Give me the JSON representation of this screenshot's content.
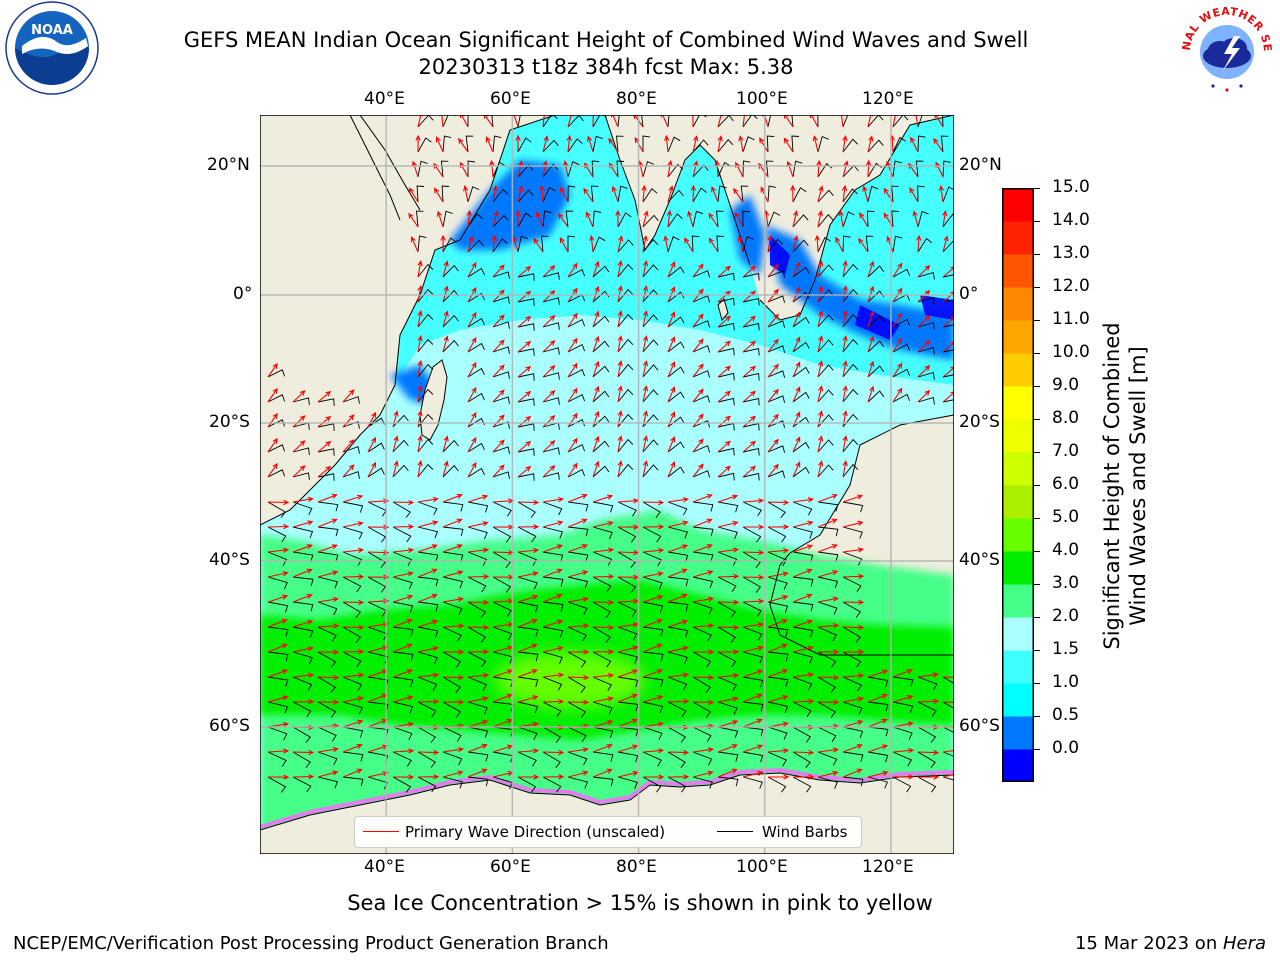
{
  "title": {
    "line1": "GEFS MEAN Indian Ocean Significant Height of Combined Wind Waves and Swell",
    "line2": "20230313 t18z 384h fcst   Max: 5.38"
  },
  "map": {
    "lon_ticks": [
      "40°E",
      "60°E",
      "80°E",
      "100°E",
      "120°E"
    ],
    "lat_ticks": [
      "20°N",
      "0°",
      "20°S",
      "40°S",
      "60°S"
    ],
    "lon_range": [
      20,
      130
    ],
    "lat_range": [
      28,
      -80
    ],
    "legend": {
      "wave_label": "Primary Wave Direction (unscaled)",
      "wind_label": "Wind Barbs",
      "wave_color": "#ff0000",
      "wind_color": "#000000"
    }
  },
  "colorbar": {
    "label_line1": "Significant Height of Combined",
    "label_line2": "Wind Waves and Swell [m]",
    "ticks": [
      "15.0",
      "14.0",
      "13.0",
      "12.0",
      "11.0",
      "10.0",
      "9.0",
      "8.0",
      "7.0",
      "6.0",
      "5.0",
      "4.0",
      "3.0",
      "2.0",
      "1.5",
      "1.0",
      "0.5",
      "0.0"
    ],
    "colors": [
      "#0000ff",
      "#0078ff",
      "#00ffff",
      "#40ffff",
      "#aaffff",
      "#44ff88",
      "#00ee00",
      "#66ff00",
      "#aaee00",
      "#ccff00",
      "#eeff00",
      "#ffff00",
      "#ffcc00",
      "#ffa500",
      "#ff8800",
      "#ff5500",
      "#ff2200",
      "#ff0000"
    ]
  },
  "colors": {
    "land": "#efedde",
    "grid": "#b3b3b3",
    "ice_pink": "#ff66ff"
  },
  "logos": {
    "noaa_text": "NOAA",
    "nws_text": "NATIONAL WEATHER SERVICE"
  },
  "footer": {
    "ice_note": "Sea Ice Concentration > 15% is shown in pink to yellow",
    "left": "NCEP/EMC/Verification Post Processing Product Generation Branch",
    "right_prefix": "15 Mar 2023 on ",
    "right_host": "Hera"
  }
}
